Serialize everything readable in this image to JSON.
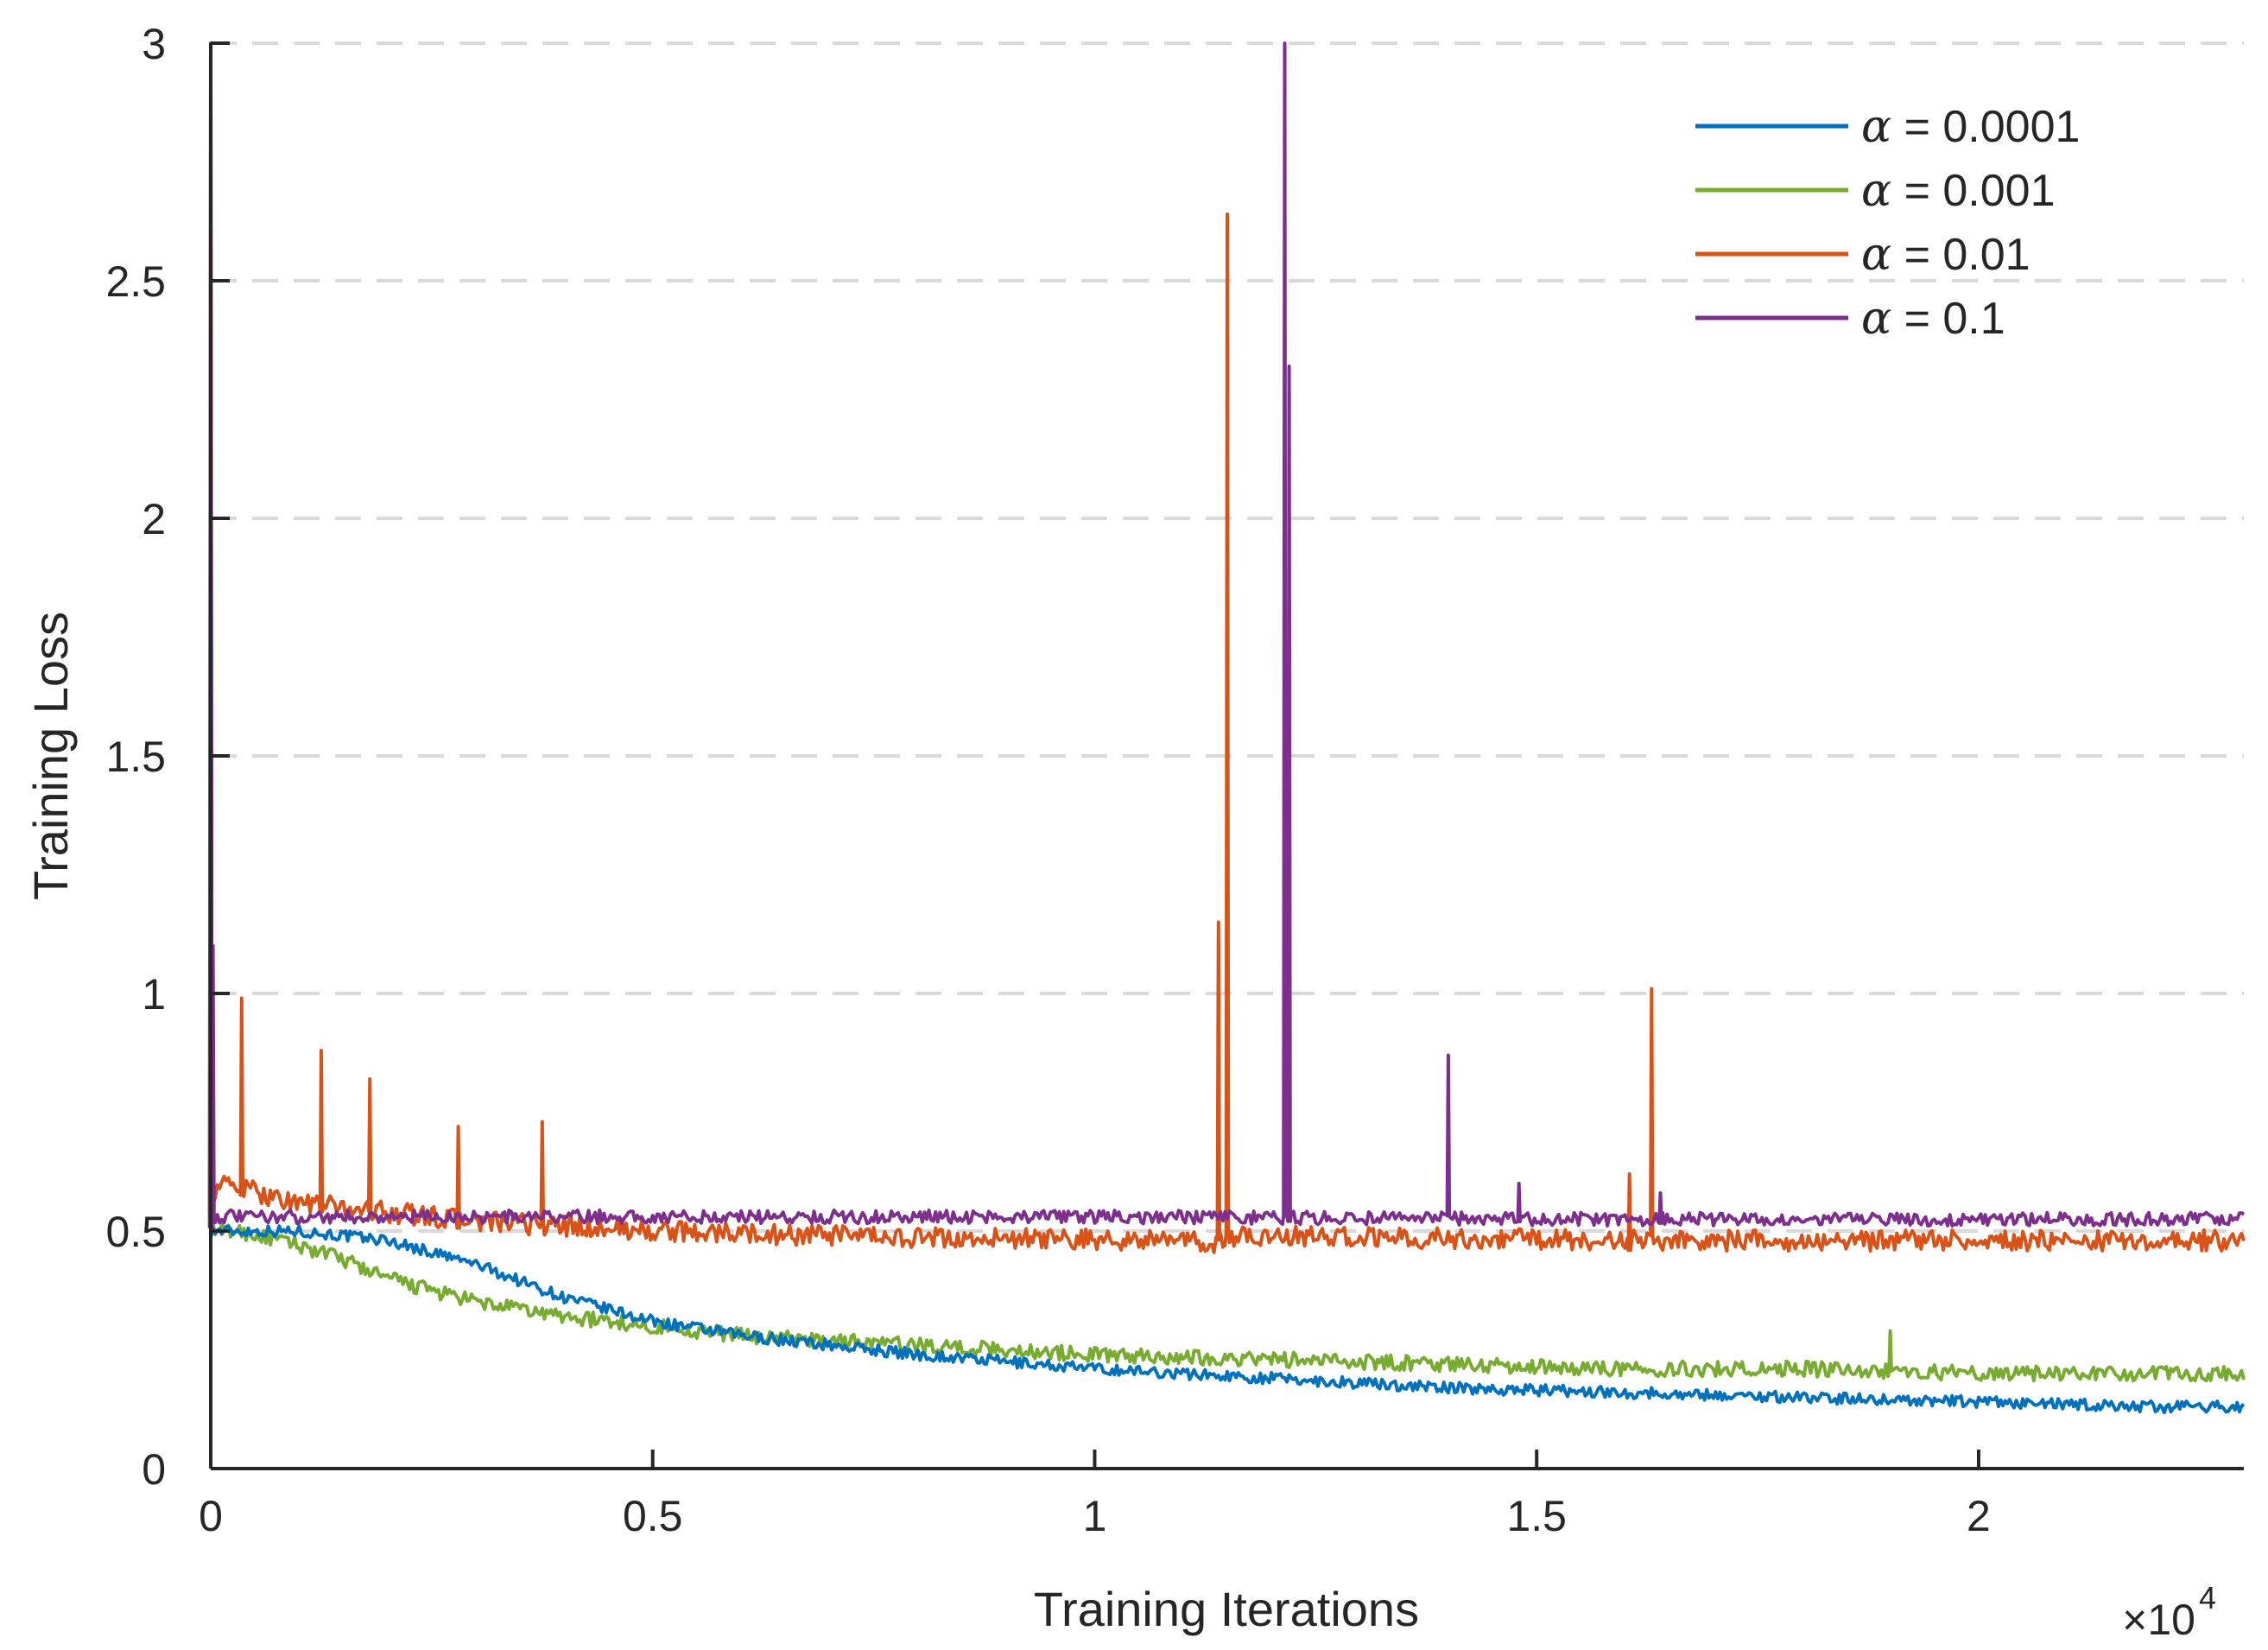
{
  "chart_data": {
    "type": "line",
    "title": "",
    "xlabel": "Training Iterations",
    "ylabel": "Training Loss",
    "x_multiplier_label": "×10",
    "x_multiplier_exponent": "4",
    "xlim": [
      0,
      23000
    ],
    "ylim": [
      0,
      3
    ],
    "xticks": [
      0,
      5000,
      10000,
      15000,
      20000
    ],
    "xtick_labels": [
      "0",
      "0.5",
      "1",
      "1.5",
      "2"
    ],
    "yticks": [
      0,
      0.5,
      1,
      1.5,
      2,
      2.5,
      3
    ],
    "ytick_labels": [
      "0",
      "0.5",
      "1",
      "1.5",
      "2",
      "2.5",
      "3"
    ],
    "grid": "horizontal-dashed",
    "legend_position": "top-right",
    "series": [
      {
        "name": "α = 0.0001",
        "greek": "α",
        "value_text": " = 0.0001",
        "color": "#0072BD",
        "x": [
          0,
          300,
          1000,
          2000,
          3000,
          4000,
          5000,
          6000,
          8000,
          10000,
          12000,
          14000,
          16000,
          18000,
          20000,
          22000,
          23000
        ],
        "y": [
          0.5,
          0.5,
          0.5,
          0.48,
          0.43,
          0.36,
          0.31,
          0.28,
          0.24,
          0.21,
          0.19,
          0.17,
          0.16,
          0.15,
          0.14,
          0.13,
          0.13
        ],
        "noise": 0.012,
        "spikes": []
      },
      {
        "name": "α = 0.001",
        "greek": "α",
        "value_text": " = 0.001",
        "color": "#77AC30",
        "x": [
          0,
          300,
          1000,
          1500,
          2000,
          3000,
          4000,
          5000,
          6000,
          8000,
          10000,
          12000,
          14000,
          16000,
          18000,
          20000,
          23000
        ],
        "y": [
          0.5,
          0.5,
          0.47,
          0.44,
          0.4,
          0.35,
          0.32,
          0.3,
          0.28,
          0.26,
          0.24,
          0.23,
          0.22,
          0.21,
          0.21,
          0.2,
          0.2
        ],
        "noise": 0.016,
        "spikes": [
          [
            19000,
            0.29
          ]
        ]
      },
      {
        "name": "α = 0.01",
        "greek": "α",
        "value_text": " = 0.01",
        "color": "#D95319",
        "x": [
          0,
          100,
          1000,
          2000,
          3000,
          4000,
          5000,
          8000,
          11000,
          11400,
          11600,
          16000,
          23000
        ],
        "y": [
          0.56,
          0.6,
          0.56,
          0.54,
          0.52,
          0.51,
          0.5,
          0.485,
          0.48,
          0.47,
          0.49,
          0.48,
          0.48
        ],
        "noise": 0.022,
        "spikes": [
          [
            0,
            3.0
          ],
          [
            350,
            0.99
          ],
          [
            1250,
            0.88
          ],
          [
            1800,
            0.82
          ],
          [
            2800,
            0.72
          ],
          [
            3750,
            0.73
          ],
          [
            11400,
            1.15
          ],
          [
            11500,
            2.64
          ],
          [
            16300,
            1.01
          ],
          [
            16050,
            0.62
          ]
        ]
      },
      {
        "name": "α = 0.1",
        "greek": "α",
        "value_text": " = 0.1",
        "color": "#7E2F8E",
        "x": [
          0,
          100,
          1000,
          5000,
          10000,
          15000,
          23000
        ],
        "y": [
          0.52,
          0.53,
          0.53,
          0.53,
          0.53,
          0.525,
          0.525
        ],
        "noise": 0.014,
        "spikes": [
          [
            0,
            3.0
          ],
          [
            20,
            1.1
          ],
          [
            12150,
            3.0
          ],
          [
            12200,
            2.32
          ],
          [
            14000,
            0.87
          ],
          [
            14800,
            0.6
          ],
          [
            16400,
            0.58
          ]
        ]
      }
    ]
  }
}
